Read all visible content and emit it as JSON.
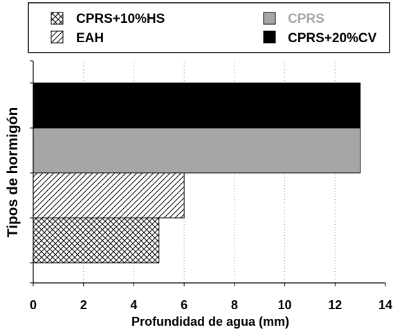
{
  "chart_data": {
    "type": "bar",
    "orientation": "horizontal",
    "categories": [
      "CPRS+10%HS",
      "EAH",
      "CPRS",
      "CPRS+20%CV"
    ],
    "series": [
      {
        "values": [
          5,
          6,
          13,
          13
        ],
        "fills": [
          "crosshatch",
          "diagonal-hatch",
          "#a6a6a6",
          "#000000"
        ]
      }
    ],
    "xlabel": "Profundidad de agua (mm)",
    "ylabel": "Tipos de hormigón",
    "xlim": [
      0,
      14
    ],
    "xticks": [
      "0",
      "2",
      "4",
      "6",
      "8",
      "10",
      "12",
      "14"
    ],
    "grid": "vertical dotted",
    "legend": {
      "placement": "top",
      "items": [
        {
          "label": "CPRS+10%HS",
          "fill": "crosshatch",
          "text_color": "#000000"
        },
        {
          "label": "EAH",
          "fill": "diagonal-hatch",
          "text_color": "#000000"
        },
        {
          "label": "CPRS",
          "fill": "#a6a6a6",
          "text_color": "#a6a6a6"
        },
        {
          "label": "CPRS+20%CV",
          "fill": "#000000",
          "text_color": "#000000"
        }
      ]
    }
  }
}
